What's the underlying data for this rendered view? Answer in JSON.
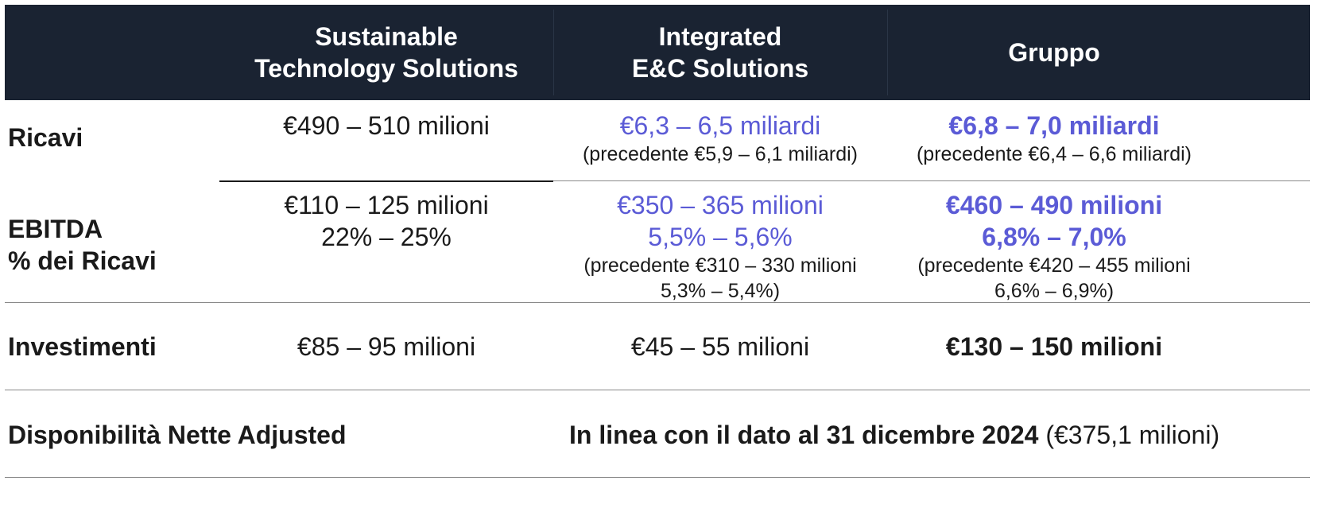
{
  "header": {
    "col1": "Sustainable\nTechnology Solutions",
    "col2": "Integrated\nE&C Solutions",
    "col3": "Gruppo"
  },
  "rows": {
    "ricavi": {
      "label": "Ricavi",
      "sts": "€490 – 510 milioni",
      "ec": "€6,3 – 6,5 miliardi",
      "ec_prev": "(precedente €5,9 – 6,1 miliardi)",
      "group": "€6,8 – 7,0 miliardi",
      "group_prev": "(precedente €6,4 – 6,6 miliardi)"
    },
    "ebitda": {
      "label": "EBITDA\n% dei Ricavi",
      "sts": "€110 – 125 milioni\n22% – 25%",
      "ec": "€350 – 365 milioni\n5,5% – 5,6%",
      "ec_prev": "(precedente €310 – 330 milioni\n5,3% – 5,4%)",
      "group": "€460 – 490 milioni\n6,8% – 7,0%",
      "group_prev": "(precedente €420 – 455 milioni\n6,6% – 6,9%)"
    },
    "investimenti": {
      "label": "Investimenti",
      "sts": "€85 – 95 milioni",
      "ec": "€45 – 55 milioni",
      "group": "€130 – 150 milioni"
    },
    "disponibilita": {
      "label": "Disponibilità Nette Adjusted",
      "value_bold": "In linea con il dato al 31 dicembre 2024",
      "value_rest": " (€375,1 milioni)"
    }
  },
  "colors": {
    "header_bg": "#1a2332",
    "highlight": "#5b5bd6",
    "text": "#1a1a1a"
  }
}
